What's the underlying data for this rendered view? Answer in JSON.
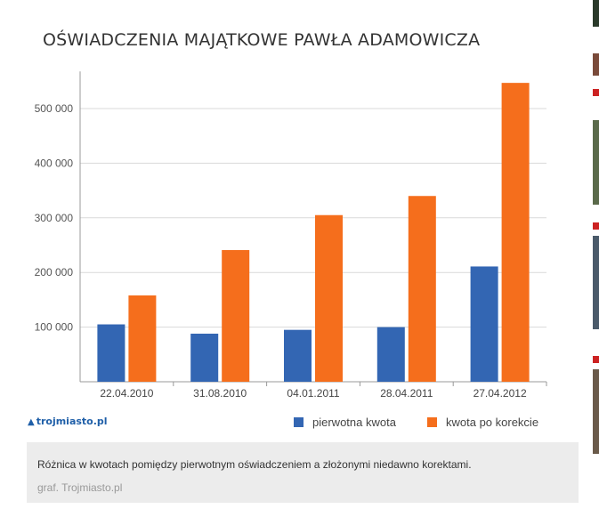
{
  "title": "OŚWIADCZENIA MAJĄTKOWE PAWŁA ADAMOWICZA",
  "logo_text": "trojmiasto.pl",
  "caption": "Różnica w kwotach pomiędzy pierwotnym oświadczeniem a złożonymi niedawno korektami.",
  "source": "graf. Trojmiasto.pl",
  "chart_data": {
    "type": "bar",
    "categories": [
      "22.04.2010",
      "31.08.2010",
      "04.01.2011",
      "28.04.2011",
      "27.04.2012"
    ],
    "series": [
      {
        "name": "pierwotna kwota",
        "color": "#3366b3",
        "values": [
          105000,
          88000,
          95000,
          100000,
          211000
        ]
      },
      {
        "name": "kwota po korekcie",
        "color": "#f56e1c",
        "values": [
          158000,
          241000,
          305000,
          340000,
          547000
        ]
      }
    ],
    "yticks": [
      {
        "value": 100000,
        "label": "100 000"
      },
      {
        "value": 200000,
        "label": "200 000"
      },
      {
        "value": 300000,
        "label": "300 000"
      },
      {
        "value": 400000,
        "label": "400 000"
      },
      {
        "value": 500000,
        "label": "500 000"
      }
    ],
    "ylim": [
      0,
      568000
    ],
    "grid": true,
    "legend": "bottom-right"
  }
}
